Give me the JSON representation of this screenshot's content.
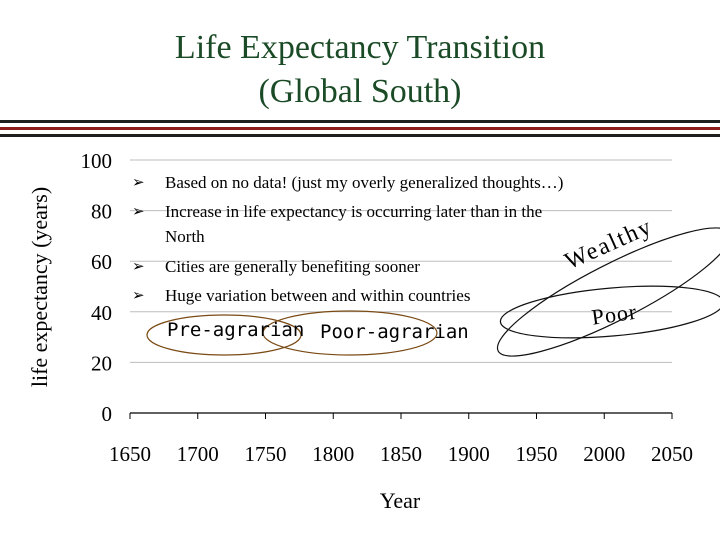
{
  "slide": {
    "title_line1": "Life Expectancy Transition",
    "title_line2": "(Global South)"
  },
  "notes": {
    "bullets": [
      "Based on no data! (just my overly generalized thoughts…)",
      "Increase in life expectancy is occurring later than in the",
      "Cities are generally benefiting sooner",
      "Huge variation between and within countries"
    ],
    "bullet2_cont": "North",
    "arrow_glyph": "➢"
  },
  "annotations": {
    "pre_agrarian": "Pre-agrarian",
    "poor_agrarian": "Poor-agrarian",
    "wealthy": "Wealthy",
    "poor": "Poor"
  },
  "colors": {
    "title": "#1a4a26",
    "rule_dark": "#1f1f1f",
    "rule_red": "#8b1a1a",
    "oval_stroke": "#7a4a14",
    "grid": "#bdbdbd"
  },
  "chart_data": {
    "type": "line",
    "title": "",
    "xlabel": "Year",
    "ylabel": "life expectancy (years)",
    "xlim": [
      1650,
      2050
    ],
    "ylim": [
      0,
      100
    ],
    "xticks": [
      1650,
      1700,
      1750,
      1800,
      1850,
      1900,
      1950,
      2000,
      2050
    ],
    "yticks": [
      0,
      20,
      40,
      60,
      80,
      100
    ],
    "grid": "horizontal",
    "legend": "none",
    "series": []
  }
}
